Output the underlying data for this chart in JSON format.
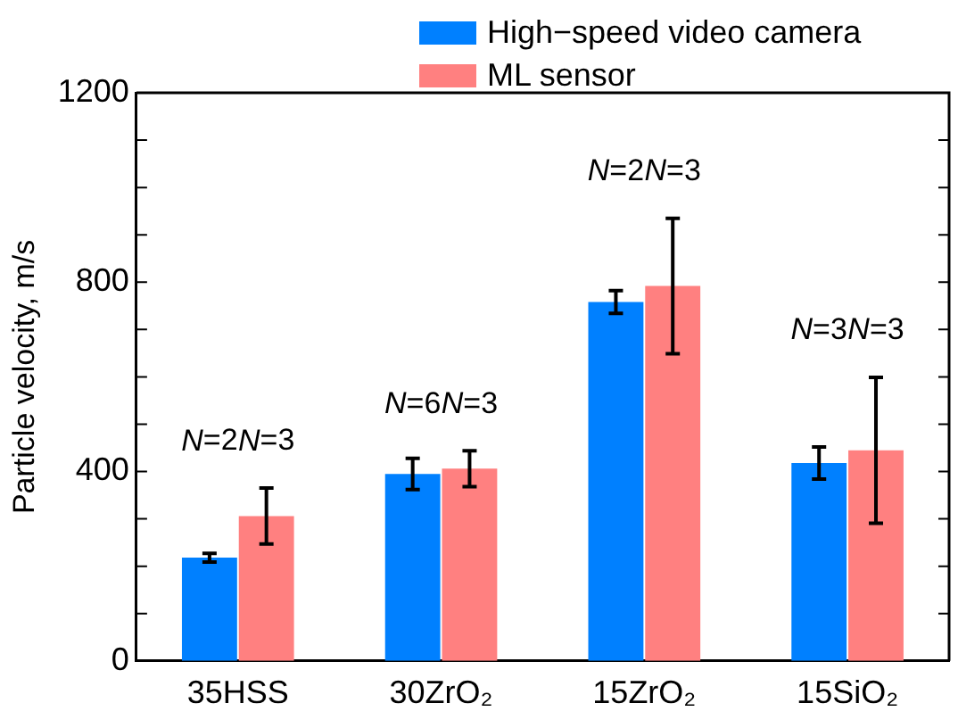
{
  "chart_data": {
    "type": "bar",
    "ylabel": "Particle velocity, m/s",
    "categories": [
      "35HSS",
      "30ZrO₂",
      "15ZrO₂",
      "15SiO₂"
    ],
    "series": [
      {
        "name": "High−speed video camera",
        "color": "#0080ff",
        "values": [
          218,
          395,
          758,
          418
        ],
        "errors": [
          9,
          33,
          24,
          34
        ]
      },
      {
        "name": "ML sensor",
        "color": "#ff8080",
        "values": [
          306,
          406,
          792,
          445
        ],
        "errors": [
          59,
          38,
          143,
          154
        ]
      }
    ],
    "ylim": [
      0,
      1200
    ],
    "yticks": [
      0,
      {
        "value": 100,
        "label": null
      },
      {
        "value": 200,
        "label": null
      },
      {
        "value": 300,
        "label": null
      },
      400,
      {
        "value": 500,
        "label": null
      },
      {
        "value": 600,
        "label": null
      },
      {
        "value": 700,
        "label": null
      },
      800,
      {
        "value": 900,
        "label": null
      },
      {
        "value": 1000,
        "label": null
      },
      {
        "value": 1100,
        "label": null
      },
      1200
    ],
    "annotations": [
      "N=2",
      "N=3",
      "N=6",
      "N=3",
      "N=2",
      "N=3",
      "N=3",
      "N=3"
    ],
    "legend": "top right",
    "grid": false
  }
}
